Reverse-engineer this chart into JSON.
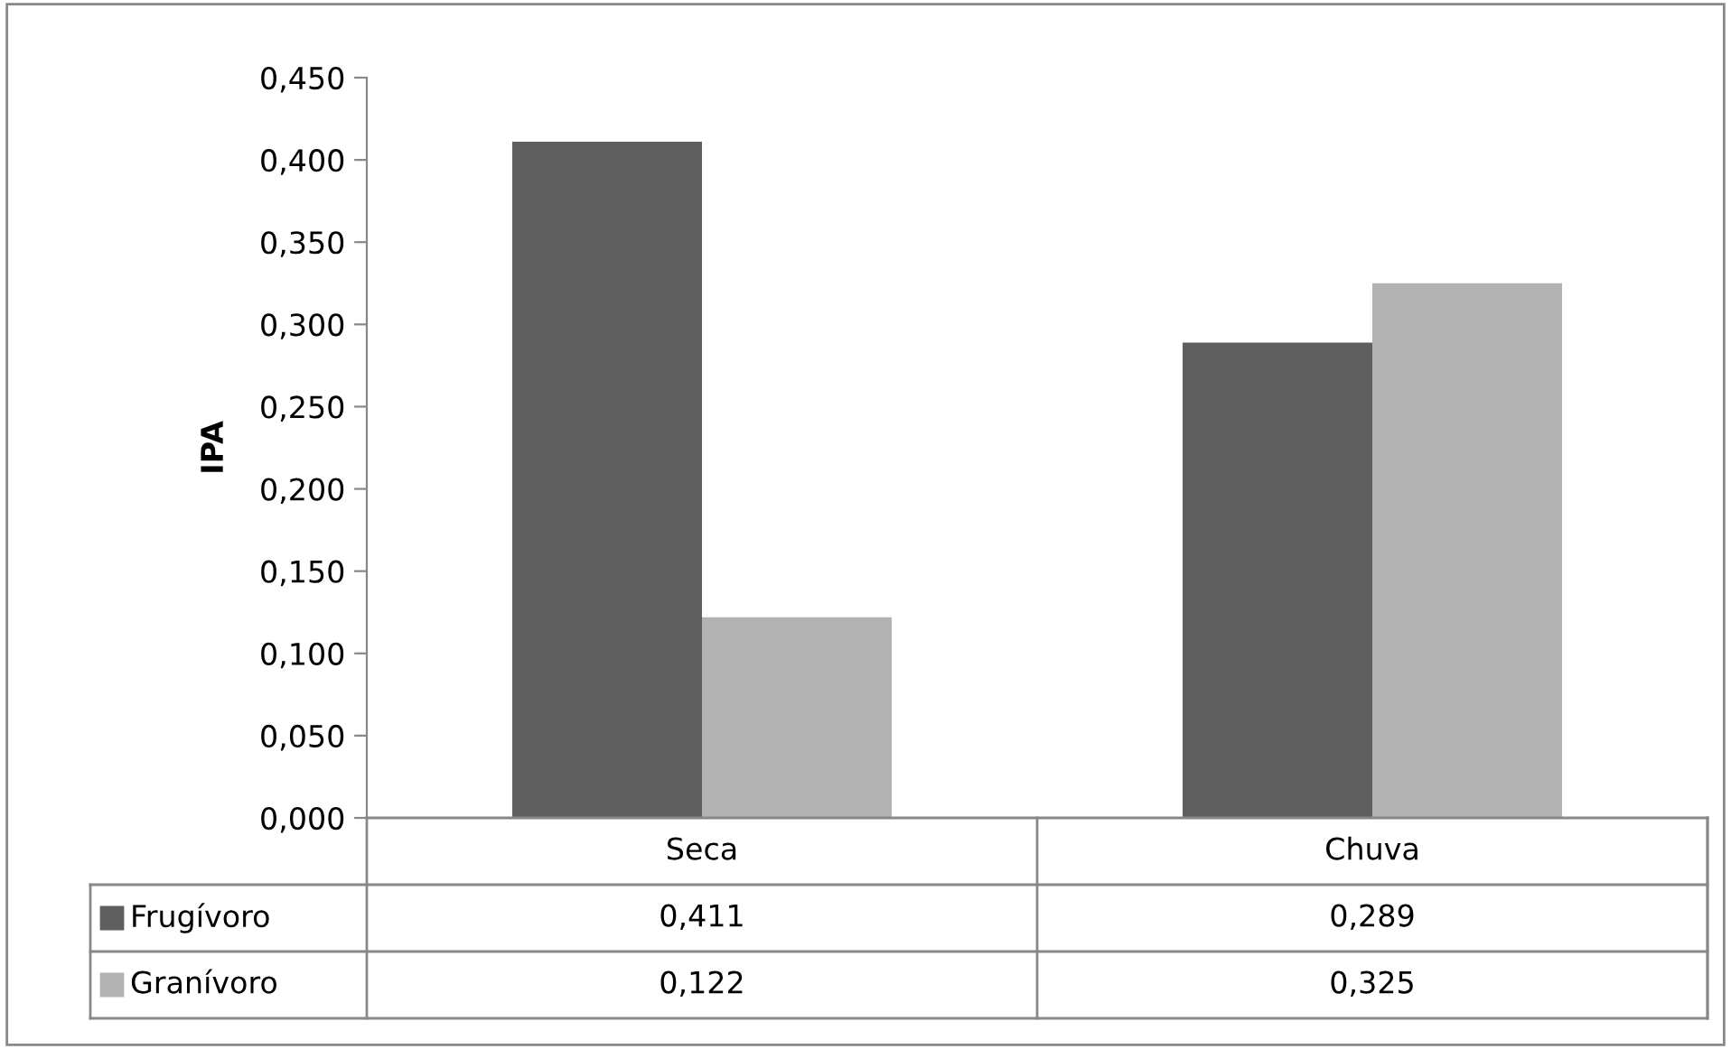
{
  "chart_data": {
    "type": "bar",
    "ylabel": "IPA",
    "categories": [
      "Seca",
      "Chuva"
    ],
    "series": [
      {
        "name": "Frugívoro",
        "color": "#5f5f5f",
        "values": [
          0.411,
          0.289
        ],
        "value_labels": [
          "0,411",
          "0,289"
        ]
      },
      {
        "name": "Granívoro",
        "color": "#b2b2b2",
        "values": [
          0.122,
          0.325
        ],
        "value_labels": [
          "0,122",
          "0,325"
        ]
      }
    ],
    "ylim": [
      0,
      0.45
    ],
    "yticks": [
      {
        "value": 0,
        "label": "0,000"
      },
      {
        "value": 0.05,
        "label": "0,050"
      },
      {
        "value": 0.1,
        "label": "0,100"
      },
      {
        "value": 0.15,
        "label": "0,150"
      },
      {
        "value": 0.2,
        "label": "0,200"
      },
      {
        "value": 0.25,
        "label": "0,250"
      },
      {
        "value": 0.3,
        "label": "0,300"
      },
      {
        "value": 0.35,
        "label": "0,350"
      },
      {
        "value": 0.4,
        "label": "0,400"
      },
      {
        "value": 0.45,
        "label": "0,450"
      }
    ],
    "grid": false,
    "legend": "bottom"
  }
}
